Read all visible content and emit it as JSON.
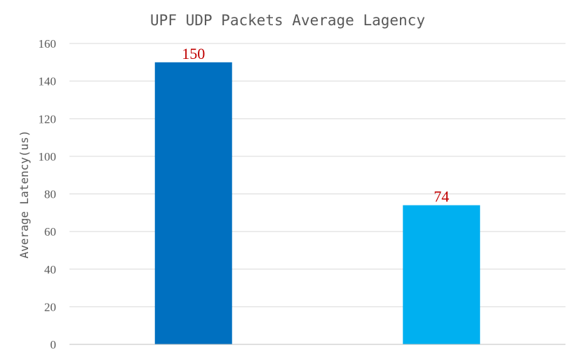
{
  "chart_data": {
    "type": "bar",
    "title": "UPF UDP Packets Average Lagency",
    "xlabel": "",
    "ylabel": "Average Latency(us)",
    "categories": [
      "",
      ""
    ],
    "values": [
      150,
      74
    ],
    "data_labels": [
      "150",
      "74"
    ],
    "ylim": [
      0,
      160
    ],
    "yticks": [
      0,
      20,
      40,
      60,
      80,
      100,
      120,
      140,
      160
    ],
    "ytick_labels": [
      "0",
      "20",
      "40",
      "60",
      "80",
      "100",
      "120",
      "140",
      "160"
    ],
    "grid": true,
    "legend": "none",
    "colors": {
      "bars": [
        "#0070c0",
        "#00b0f0"
      ],
      "data_label": "#c00000",
      "text": "#595959",
      "grid": "#d9d9d9"
    }
  }
}
